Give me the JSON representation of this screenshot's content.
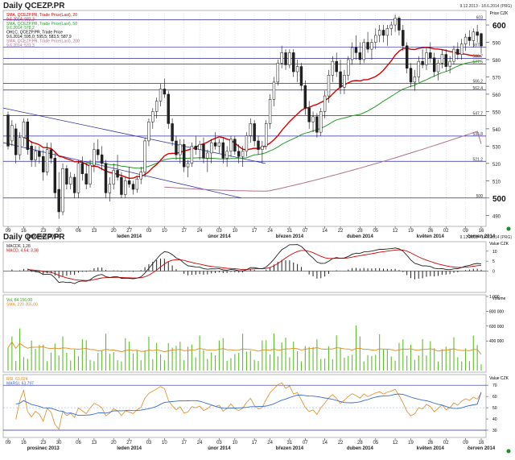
{
  "header": {
    "title": "Daily QCEZP.PR",
    "range": "9.12.2013 - 18.6.2014 (PRG)"
  },
  "price_panel": {
    "legend": [
      {
        "text": "SMA, QCEZP.PR, Trade Price(Last), 20",
        "color": "#d40000"
      },
      {
        "text": "9.6.2014; 582,3",
        "color": "#d40000"
      },
      {
        "text": "SMA, QCEZP.PR, Trade Price(Last), 50",
        "color": "#2a9a2a"
      },
      {
        "text": "9.6.2014; 578,2",
        "color": "#2a9a2a"
      },
      {
        "text": "OHLC, QCEZP.PR, Trade Price",
        "color": "#000000"
      },
      {
        "text": "9.6.2014; 595,0; 595,5; 583,5; 587,9",
        "color": "#000000"
      },
      {
        "text": "SMA, QCEZP.PR, Trade Price(Last), 200",
        "color": "#b07090"
      },
      {
        "text": "9.6.2014; 531,3",
        "color": "#b07090"
      }
    ],
    "unit_label": "Price CZK",
    "hline_labels": [
      "603",
      "587,3",
      "580,7",
      "577,5",
      "566,2",
      "562,4",
      "547,7",
      "535,8",
      "521,2",
      "500"
    ],
    "y_ticks": [
      "490",
      "500",
      "510",
      "520",
      "530",
      "540",
      "550",
      "560",
      "570",
      "580",
      "590",
      "600"
    ],
    "x_ticks": [
      "09",
      "16",
      "23",
      "30",
      "06",
      "13",
      "20",
      "27",
      "03",
      "10",
      "17",
      "24",
      "03",
      "10",
      "17",
      "24",
      "31",
      "07",
      "14",
      "22",
      "28",
      "05",
      "12",
      "19",
      "26",
      "02",
      "09",
      "16"
    ],
    "months": [
      "prosinec 2013",
      "leden 2014",
      "únor 2014",
      "březen 2014",
      "duben 2014",
      "květen 2014",
      "červen 2014"
    ]
  },
  "lower_header": {
    "title": "Daily QCEZP.PR",
    "range": "9.12.2013 - 18.6.2014 (PRG)"
  },
  "macd_panel": {
    "legend": [
      "MACDF, 1,28",
      "MACD, 4,64; 3,38"
    ],
    "unit_label": "Value CZK",
    "y_ticks": [
      "10",
      "5",
      "0"
    ]
  },
  "volume_panel": {
    "legend": [
      "Vol, 84 156,00",
      "SMA, 220 355,00"
    ],
    "unit_label": "Volume",
    "y_ticks": [
      "1 000",
      "800 000",
      "600 000",
      "400 000"
    ]
  },
  "rsi_panel": {
    "legend": [
      "RSI, 63,024",
      "MARSI, 63,797"
    ],
    "unit_label": "Value CZK",
    "y_ticks": [
      "70",
      "60",
      "50",
      "40",
      "30"
    ]
  },
  "chart_data": {
    "type": "candlestick",
    "title": "Daily QCEZP.PR",
    "date_range": "9.12.2013 - 18.6.2014",
    "ylim": [
      485,
      607
    ],
    "ohlc": [
      {
        "date": "2013-12-09",
        "open": 548,
        "high": 550,
        "low": 528,
        "close": 530
      },
      {
        "date": "2013-12-10",
        "open": 533,
        "high": 545,
        "low": 530,
        "close": 542
      },
      {
        "date": "2013-12-11",
        "open": 540,
        "high": 543,
        "low": 520,
        "close": 525
      },
      {
        "date": "2013-12-12",
        "open": 525,
        "high": 538,
        "low": 522,
        "close": 535
      },
      {
        "date": "2013-12-13",
        "open": 535,
        "high": 546,
        "low": 530,
        "close": 544
      },
      {
        "date": "2013-12-16",
        "open": 544,
        "high": 546,
        "low": 525,
        "close": 528
      },
      {
        "date": "2013-12-17",
        "open": 530,
        "high": 533,
        "low": 518,
        "close": 522
      },
      {
        "date": "2013-12-18",
        "open": 522,
        "high": 530,
        "low": 518,
        "close": 527
      },
      {
        "date": "2013-12-19",
        "open": 527,
        "high": 530,
        "low": 520,
        "close": 524
      },
      {
        "date": "2013-12-20",
        "open": 524,
        "high": 528,
        "low": 510,
        "close": 515
      },
      {
        "date": "2013-12-23",
        "open": 515,
        "high": 532,
        "low": 513,
        "close": 528
      },
      {
        "date": "2013-12-27",
        "open": 528,
        "high": 532,
        "low": 520,
        "close": 523
      },
      {
        "date": "2013-12-30",
        "open": 523,
        "high": 526,
        "low": 500,
        "close": 503
      },
      {
        "date": "2014-01-02",
        "open": 505,
        "high": 515,
        "low": 488,
        "close": 492
      },
      {
        "date": "2014-01-03",
        "open": 492,
        "high": 520,
        "low": 490,
        "close": 517
      },
      {
        "date": "2014-01-06",
        "open": 517,
        "high": 519,
        "low": 505,
        "close": 508
      },
      {
        "date": "2014-01-07",
        "open": 508,
        "high": 515,
        "low": 505,
        "close": 512
      },
      {
        "date": "2014-01-08",
        "open": 512,
        "high": 514,
        "low": 500,
        "close": 503
      },
      {
        "date": "2014-01-09",
        "open": 503,
        "high": 522,
        "low": 500,
        "close": 520
      },
      {
        "date": "2014-01-10",
        "open": 520,
        "high": 524,
        "low": 510,
        "close": 514
      },
      {
        "date": "2014-01-13",
        "open": 514,
        "high": 520,
        "low": 505,
        "close": 508
      },
      {
        "date": "2014-01-14",
        "open": 508,
        "high": 522,
        "low": 506,
        "close": 519
      },
      {
        "date": "2014-01-15",
        "open": 519,
        "high": 532,
        "low": 515,
        "close": 528
      },
      {
        "date": "2014-01-16",
        "open": 528,
        "high": 534,
        "low": 522,
        "close": 525
      },
      {
        "date": "2014-01-17",
        "open": 525,
        "high": 530,
        "low": 516,
        "close": 520
      },
      {
        "date": "2014-01-20",
        "open": 520,
        "high": 522,
        "low": 500,
        "close": 503
      },
      {
        "date": "2014-01-21",
        "open": 503,
        "high": 512,
        "low": 498,
        "close": 508
      },
      {
        "date": "2014-01-22",
        "open": 508,
        "high": 520,
        "low": 505,
        "close": 516
      },
      {
        "date": "2014-01-23",
        "open": 516,
        "high": 525,
        "low": 510,
        "close": 512
      },
      {
        "date": "2014-01-24",
        "open": 512,
        "high": 515,
        "low": 500,
        "close": 502
      },
      {
        "date": "2014-01-27",
        "open": 502,
        "high": 512,
        "low": 500,
        "close": 510
      },
      {
        "date": "2014-01-28",
        "open": 510,
        "high": 518,
        "low": 506,
        "close": 508
      },
      {
        "date": "2014-01-29",
        "open": 508,
        "high": 510,
        "low": 502,
        "close": 505
      },
      {
        "date": "2014-01-30",
        "open": 505,
        "high": 512,
        "low": 503,
        "close": 511
      },
      {
        "date": "2014-01-31",
        "open": 511,
        "high": 518,
        "low": 508,
        "close": 515
      },
      {
        "date": "2014-02-03",
        "open": 515,
        "high": 535,
        "low": 512,
        "close": 533
      },
      {
        "date": "2014-02-04",
        "open": 533,
        "high": 546,
        "low": 530,
        "close": 544
      },
      {
        "date": "2014-02-05",
        "open": 544,
        "high": 552,
        "low": 540,
        "close": 550
      },
      {
        "date": "2014-02-06",
        "open": 550,
        "high": 558,
        "low": 546,
        "close": 556
      },
      {
        "date": "2014-02-07",
        "open": 556,
        "high": 566,
        "low": 553,
        "close": 563
      },
      {
        "date": "2014-02-10",
        "open": 563,
        "high": 569,
        "low": 558,
        "close": 560
      },
      {
        "date": "2014-02-11",
        "open": 560,
        "high": 562,
        "low": 540,
        "close": 543
      },
      {
        "date": "2014-02-12",
        "open": 543,
        "high": 546,
        "low": 530,
        "close": 533
      },
      {
        "date": "2014-02-13",
        "open": 533,
        "high": 536,
        "low": 522,
        "close": 525
      },
      {
        "date": "2014-02-14",
        "open": 525,
        "high": 534,
        "low": 520,
        "close": 531
      },
      {
        "date": "2014-02-17",
        "open": 531,
        "high": 534,
        "low": 515,
        "close": 518
      },
      {
        "date": "2014-02-18",
        "open": 518,
        "high": 522,
        "low": 512,
        "close": 520
      },
      {
        "date": "2014-02-19",
        "open": 520,
        "high": 532,
        "low": 518,
        "close": 530
      },
      {
        "date": "2014-02-20",
        "open": 530,
        "high": 536,
        "low": 525,
        "close": 528
      },
      {
        "date": "2014-02-21",
        "open": 528,
        "high": 533,
        "low": 522,
        "close": 531
      },
      {
        "date": "2014-02-24",
        "open": 531,
        "high": 535,
        "low": 520,
        "close": 523
      },
      {
        "date": "2014-02-25",
        "open": 523,
        "high": 528,
        "low": 515,
        "close": 526
      },
      {
        "date": "2014-02-26",
        "open": 526,
        "high": 534,
        "low": 520,
        "close": 532
      },
      {
        "date": "2014-02-27",
        "open": 532,
        "high": 538,
        "low": 528,
        "close": 530
      },
      {
        "date": "2014-02-28",
        "open": 530,
        "high": 534,
        "low": 526,
        "close": 532
      },
      {
        "date": "2014-03-03",
        "open": 532,
        "high": 535,
        "low": 520,
        "close": 523
      },
      {
        "date": "2014-03-04",
        "open": 523,
        "high": 530,
        "low": 518,
        "close": 527
      },
      {
        "date": "2014-03-05",
        "open": 527,
        "high": 536,
        "low": 524,
        "close": 534
      },
      {
        "date": "2014-03-06",
        "open": 534,
        "high": 536,
        "low": 525,
        "close": 527
      },
      {
        "date": "2014-03-07",
        "open": 527,
        "high": 531,
        "low": 520,
        "close": 524
      },
      {
        "date": "2014-03-10",
        "open": 524,
        "high": 530,
        "low": 518,
        "close": 527
      },
      {
        "date": "2014-03-11",
        "open": 527,
        "high": 538,
        "low": 524,
        "close": 536
      },
      {
        "date": "2014-03-12",
        "open": 536,
        "high": 546,
        "low": 532,
        "close": 543
      },
      {
        "date": "2014-03-13",
        "open": 543,
        "high": 545,
        "low": 530,
        "close": 533
      },
      {
        "date": "2014-03-14",
        "open": 533,
        "high": 536,
        "low": 525,
        "close": 528
      },
      {
        "date": "2014-03-17",
        "open": 528,
        "high": 533,
        "low": 520,
        "close": 530
      },
      {
        "date": "2014-03-18",
        "open": 530,
        "high": 545,
        "low": 528,
        "close": 543
      },
      {
        "date": "2014-03-19",
        "open": 543,
        "high": 560,
        "low": 540,
        "close": 557
      },
      {
        "date": "2014-03-20",
        "open": 557,
        "high": 570,
        "low": 553,
        "close": 567
      },
      {
        "date": "2014-03-21",
        "open": 567,
        "high": 580,
        "low": 565,
        "close": 578
      },
      {
        "date": "2014-03-24",
        "open": 578,
        "high": 588,
        "low": 575,
        "close": 584
      },
      {
        "date": "2014-03-25",
        "open": 584,
        "high": 586,
        "low": 574,
        "close": 577
      },
      {
        "date": "2014-03-26",
        "open": 577,
        "high": 586,
        "low": 575,
        "close": 584
      },
      {
        "date": "2014-03-27",
        "open": 584,
        "high": 586,
        "low": 570,
        "close": 573
      },
      {
        "date": "2014-03-28",
        "open": 573,
        "high": 580,
        "low": 567,
        "close": 576
      },
      {
        "date": "2014-03-31",
        "open": 576,
        "high": 578,
        "low": 562,
        "close": 565
      },
      {
        "date": "2014-04-01",
        "open": 565,
        "high": 568,
        "low": 548,
        "close": 552
      },
      {
        "date": "2014-04-02",
        "open": 552,
        "high": 556,
        "low": 540,
        "close": 544
      },
      {
        "date": "2014-04-03",
        "open": 544,
        "high": 550,
        "low": 538,
        "close": 547
      },
      {
        "date": "2014-04-04",
        "open": 547,
        "high": 549,
        "low": 535,
        "close": 538
      },
      {
        "date": "2014-04-07",
        "open": 538,
        "high": 552,
        "low": 536,
        "close": 550
      },
      {
        "date": "2014-04-08",
        "open": 550,
        "high": 562,
        "low": 546,
        "close": 559
      },
      {
        "date": "2014-04-09",
        "open": 559,
        "high": 574,
        "low": 555,
        "close": 571
      },
      {
        "date": "2014-04-10",
        "open": 571,
        "high": 582,
        "low": 567,
        "close": 579
      },
      {
        "date": "2014-04-11",
        "open": 579,
        "high": 584,
        "low": 570,
        "close": 573
      },
      {
        "date": "2014-04-14",
        "open": 573,
        "high": 580,
        "low": 560,
        "close": 564
      },
      {
        "date": "2014-04-15",
        "open": 564,
        "high": 574,
        "low": 560,
        "close": 571
      },
      {
        "date": "2014-04-16",
        "open": 571,
        "high": 582,
        "low": 568,
        "close": 580
      },
      {
        "date": "2014-04-17",
        "open": 580,
        "high": 590,
        "low": 577,
        "close": 587
      },
      {
        "date": "2014-04-22",
        "open": 587,
        "high": 594,
        "low": 580,
        "close": 584
      },
      {
        "date": "2014-04-23",
        "open": 584,
        "high": 590,
        "low": 577,
        "close": 580
      },
      {
        "date": "2014-04-24",
        "open": 580,
        "high": 592,
        "low": 578,
        "close": 590
      },
      {
        "date": "2014-04-25",
        "open": 590,
        "high": 596,
        "low": 584,
        "close": 586
      },
      {
        "date": "2014-04-28",
        "open": 586,
        "high": 592,
        "low": 580,
        "close": 590
      },
      {
        "date": "2014-04-29",
        "open": 590,
        "high": 598,
        "low": 586,
        "close": 594
      },
      {
        "date": "2014-04-30",
        "open": 594,
        "high": 600,
        "low": 590,
        "close": 597
      },
      {
        "date": "2014-05-02",
        "open": 597,
        "high": 600,
        "low": 590,
        "close": 594
      },
      {
        "date": "2014-05-05",
        "open": 594,
        "high": 600,
        "low": 588,
        "close": 598
      },
      {
        "date": "2014-05-06",
        "open": 598,
        "high": 602,
        "low": 594,
        "close": 600
      },
      {
        "date": "2014-05-07",
        "open": 600,
        "high": 606,
        "low": 596,
        "close": 604
      },
      {
        "date": "2014-05-09",
        "open": 604,
        "high": 605,
        "low": 594,
        "close": 597
      },
      {
        "date": "2014-05-12",
        "open": 597,
        "high": 600,
        "low": 585,
        "close": 588
      },
      {
        "date": "2014-05-13",
        "open": 588,
        "high": 590,
        "low": 572,
        "close": 575
      },
      {
        "date": "2014-05-14",
        "open": 575,
        "high": 578,
        "low": 564,
        "close": 567
      },
      {
        "date": "2014-05-15",
        "open": 567,
        "high": 574,
        "low": 562,
        "close": 570
      },
      {
        "date": "2014-05-16",
        "open": 570,
        "high": 582,
        "low": 567,
        "close": 579
      },
      {
        "date": "2014-05-19",
        "open": 579,
        "high": 586,
        "low": 575,
        "close": 577
      },
      {
        "date": "2014-05-20",
        "open": 577,
        "high": 587,
        "low": 574,
        "close": 584
      },
      {
        "date": "2014-05-21",
        "open": 584,
        "high": 590,
        "low": 578,
        "close": 581
      },
      {
        "date": "2014-05-22",
        "open": 581,
        "high": 584,
        "low": 570,
        "close": 573
      },
      {
        "date": "2014-05-23",
        "open": 573,
        "high": 580,
        "low": 568,
        "close": 578
      },
      {
        "date": "2014-05-26",
        "open": 578,
        "high": 586,
        "low": 575,
        "close": 583
      },
      {
        "date": "2014-05-27",
        "open": 583,
        "high": 586,
        "low": 573,
        "close": 576
      },
      {
        "date": "2014-05-28",
        "open": 576,
        "high": 582,
        "low": 572,
        "close": 579
      },
      {
        "date": "2014-05-29",
        "open": 579,
        "high": 588,
        "low": 577,
        "close": 586
      },
      {
        "date": "2014-05-30",
        "open": 586,
        "high": 590,
        "low": 580,
        "close": 583
      },
      {
        "date": "2014-06-02",
        "open": 583,
        "high": 592,
        "low": 580,
        "close": 589
      },
      {
        "date": "2014-06-03",
        "open": 589,
        "high": 595,
        "low": 585,
        "close": 593
      },
      {
        "date": "2014-06-04",
        "open": 593,
        "high": 597,
        "low": 588,
        "close": 591
      },
      {
        "date": "2014-06-05",
        "open": 591,
        "high": 598,
        "low": 587,
        "close": 596
      },
      {
        "date": "2014-06-06",
        "open": 596,
        "high": 600,
        "low": 590,
        "close": 594
      },
      {
        "date": "2014-06-09",
        "open": 595,
        "high": 595.5,
        "low": 583.5,
        "close": 587.9
      }
    ],
    "sma20_last": 582.3,
    "sma50_last": 578.2,
    "sma200_last": 531.3,
    "volume_last": 84156,
    "volume_sma_last": 220355,
    "macd_last": [
      4.64,
      3.38
    ],
    "macdf_last": 1.28,
    "rsi_last": 63.024,
    "marsi_last": 63.797
  }
}
